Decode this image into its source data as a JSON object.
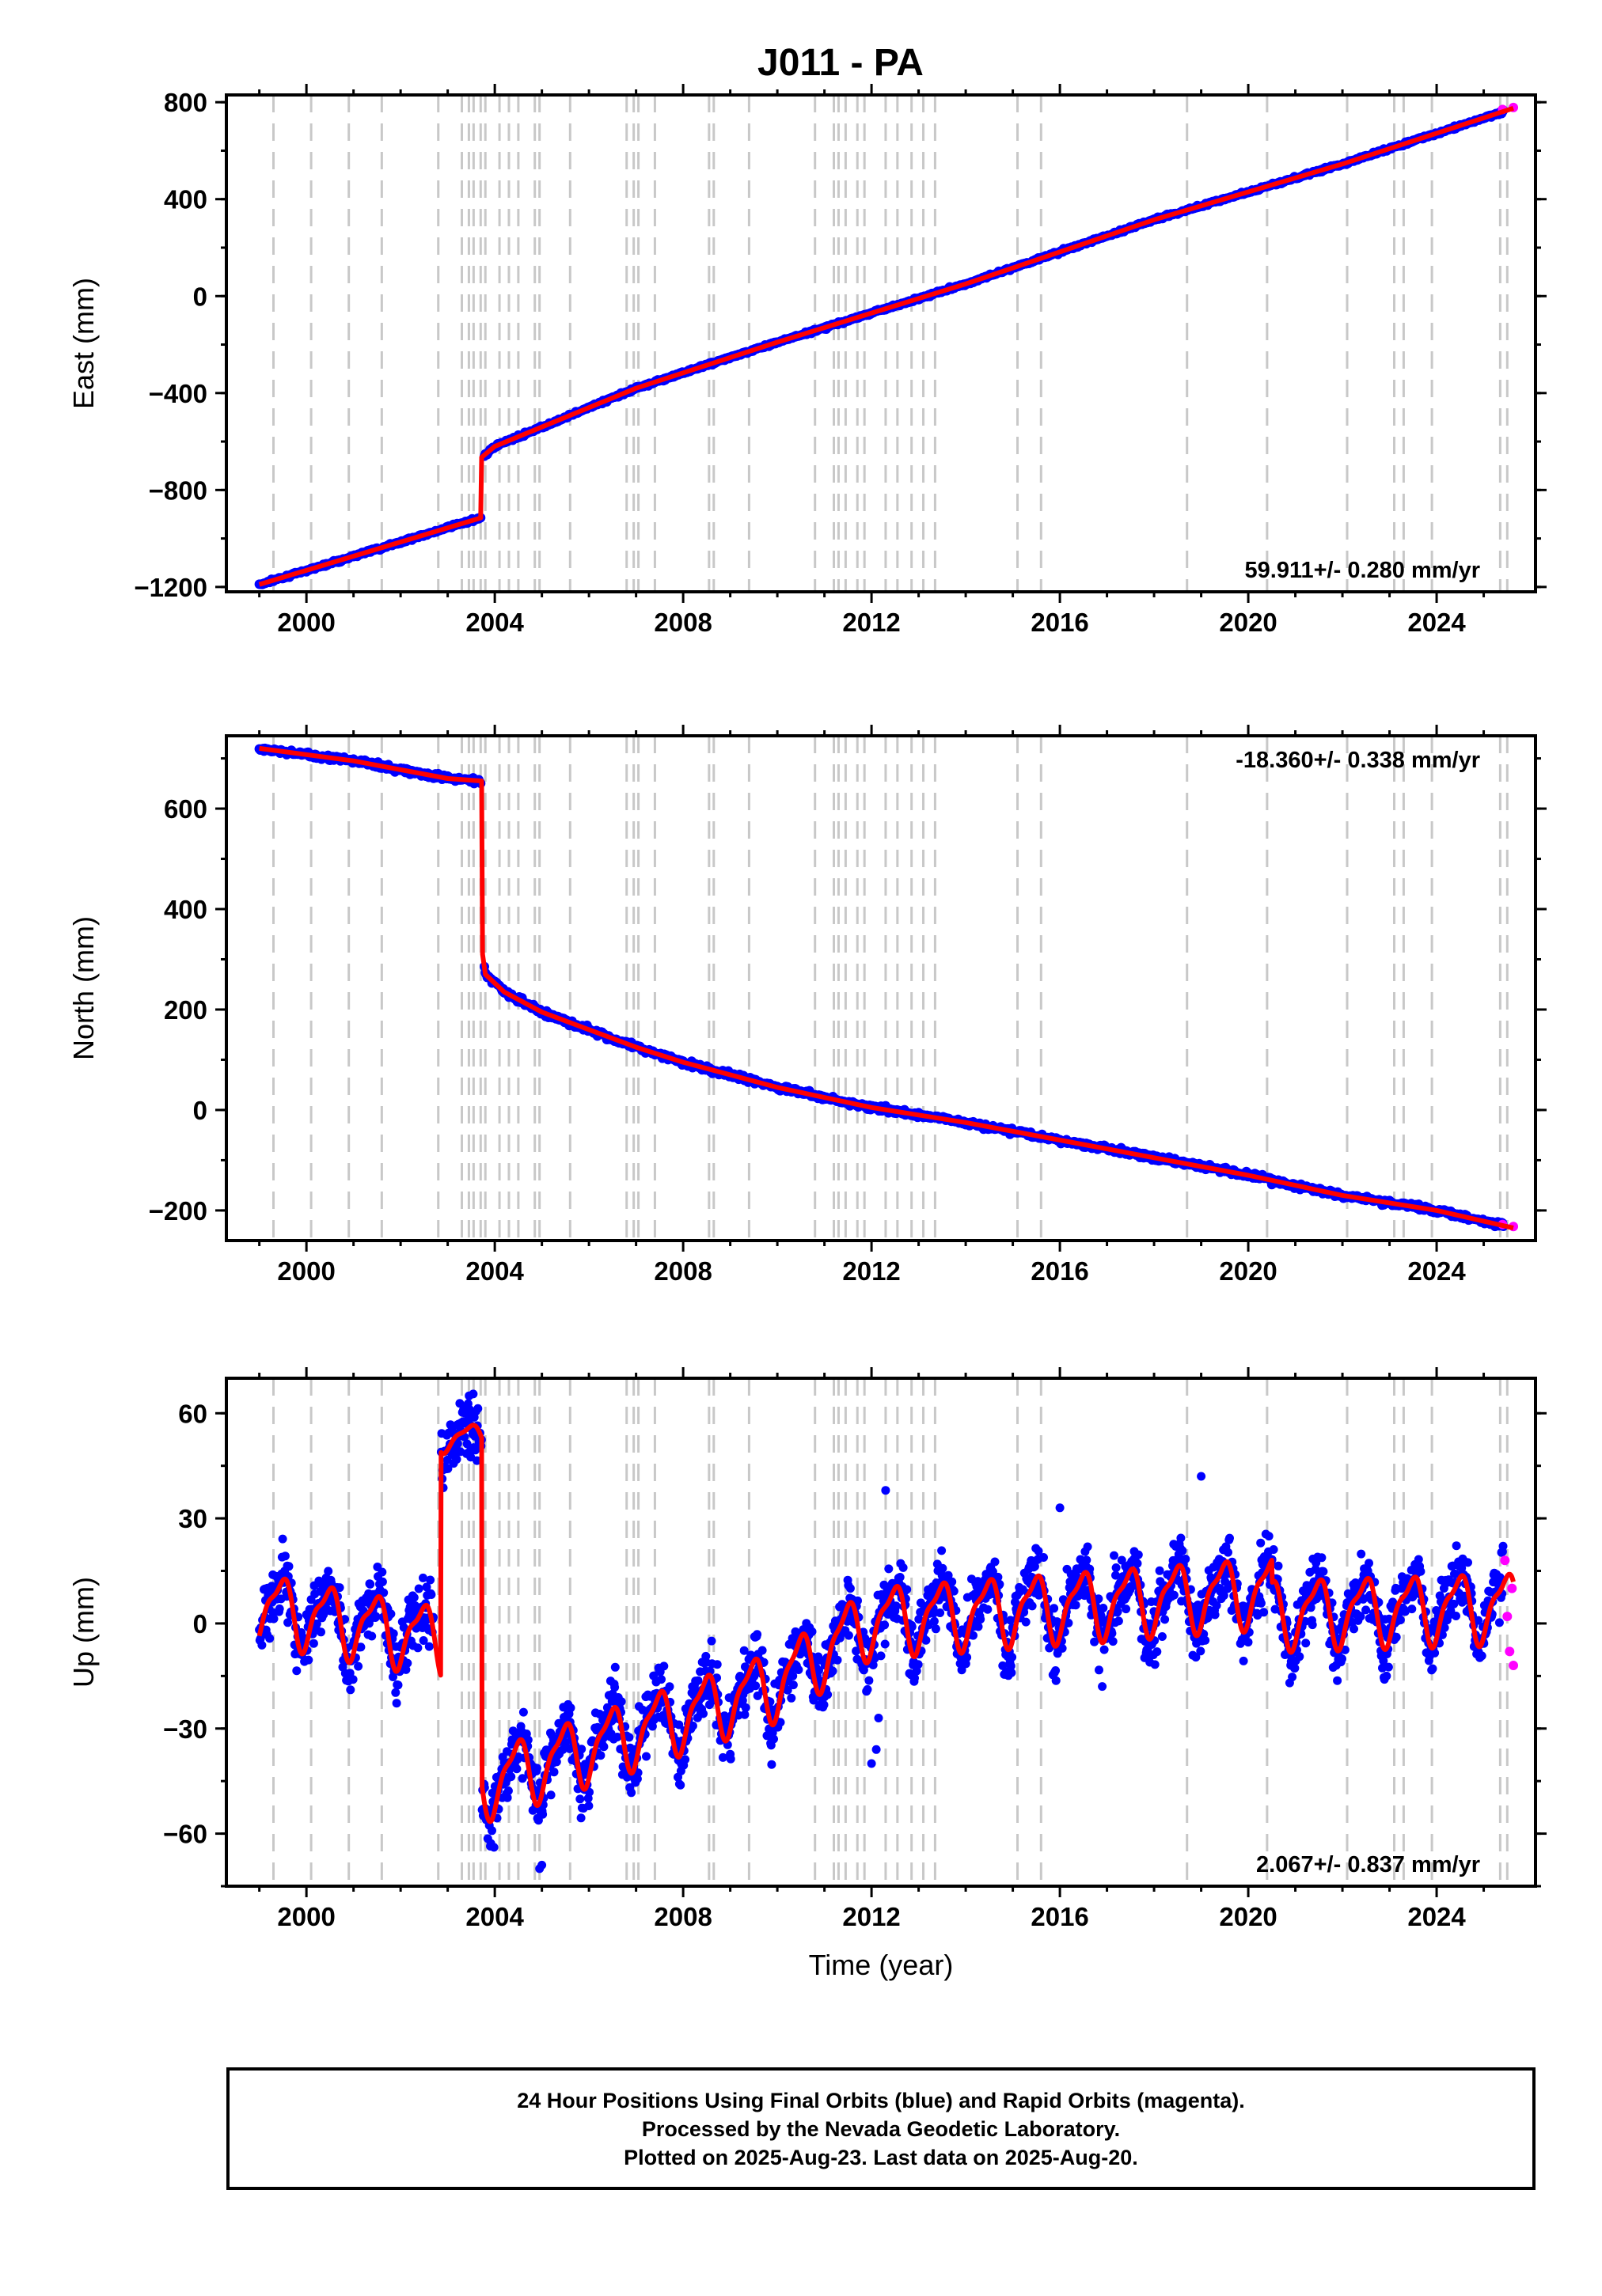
{
  "title": "J011 - PA",
  "colors": {
    "final_orbits": "#0000ff",
    "rapid_orbits": "#ff00ff",
    "model_fit": "#ff0000",
    "event_lines": "#c8c8c8"
  },
  "chart_data": [
    {
      "type": "scatter",
      "name": "east",
      "ylabel": "East (mm)",
      "xlabel": "",
      "xlim": [
        1998.3,
        2026.1
      ],
      "ylim": [
        -1220,
        830
      ],
      "x_ticks": [
        2000,
        2004,
        2008,
        2012,
        2016,
        2020,
        2024
      ],
      "y_ticks": [
        -1200,
        -800,
        -400,
        0,
        400,
        800
      ],
      "x_tick_labels": [
        "2000",
        "2004",
        "2008",
        "2012",
        "2016",
        "2020",
        "2024"
      ],
      "y_tick_labels": [
        "−1200",
        "−800",
        "−400",
        "0",
        "400",
        "800"
      ],
      "rate_label": "59.911+/- 0.280 mm/yr",
      "rate_position": "bottom-right",
      "series": [
        {
          "name": "final",
          "x": [
            1999.0,
            2001.0,
            2003.0,
            2003.7
          ],
          "y": [
            -1190,
            -1075,
            -960,
            -915
          ]
        },
        {
          "name": "rapid",
          "x": [
            2025.4,
            2025.63
          ],
          "y": [
            770,
            778
          ]
        }
      ],
      "fit": {
        "x": [
          1999.0,
          2003.7,
          2003.72,
          2004.0,
          2005.0,
          2007.0,
          2010.0,
          2014.0,
          2018.0,
          2022.0,
          2025.63
        ],
        "y": [
          -1190,
          -915,
          -665,
          -620,
          -540,
          -380,
          -190,
          50,
          315,
          545,
          775
        ]
      }
    },
    {
      "type": "scatter",
      "name": "north",
      "ylabel": "North (mm)",
      "xlabel": "",
      "xlim": [
        1998.3,
        2026.1
      ],
      "ylim": [
        -260,
        745
      ],
      "x_ticks": [
        2000,
        2004,
        2008,
        2012,
        2016,
        2020,
        2024
      ],
      "y_ticks": [
        -200,
        0,
        200,
        400,
        600
      ],
      "x_tick_labels": [
        "2000",
        "2004",
        "2008",
        "2012",
        "2016",
        "2020",
        "2024"
      ],
      "y_tick_labels": [
        "−200",
        "0",
        "200",
        "400",
        "600"
      ],
      "rate_label": "-18.360+/- 0.338 mm/yr",
      "rate_position": "top-right",
      "series": [
        {
          "name": "rapid",
          "x": [
            2025.4,
            2025.63
          ],
          "y": [
            -228,
            -232
          ]
        }
      ],
      "fit": {
        "x": [
          1999.0,
          2001.0,
          2003.0,
          2003.72,
          2003.74,
          2003.8,
          2004.2,
          2005.0,
          2006.0,
          2007.0,
          2008.0,
          2010.0,
          2012.0,
          2014.0,
          2016.0,
          2018.0,
          2020.0,
          2022.0,
          2024.0,
          2025.63
        ],
        "y": [
          720,
          695,
          660,
          655,
          310,
          270,
          235,
          195,
          160,
          125,
          95,
          45,
          5,
          -25,
          -60,
          -95,
          -130,
          -170,
          -200,
          -235
        ]
      }
    },
    {
      "type": "scatter",
      "name": "up",
      "ylabel": "Up (mm)",
      "xlabel": "Time (year)",
      "xlim": [
        1998.3,
        2026.1
      ],
      "ylim": [
        -75,
        70
      ],
      "x_ticks": [
        2000,
        2004,
        2008,
        2012,
        2016,
        2020,
        2024
      ],
      "y_ticks": [
        -60,
        -30,
        0,
        30,
        60
      ],
      "x_tick_labels": [
        "2000",
        "2004",
        "2008",
        "2012",
        "2016",
        "2020",
        "2024"
      ],
      "y_tick_labels": [
        "−60",
        "−30",
        "0",
        "30",
        "60"
      ],
      "rate_label": "2.067+/- 0.837 mm/yr",
      "rate_position": "bottom-right",
      "series": [
        {
          "name": "rapid",
          "x": [
            2025.45,
            2025.5,
            2025.55,
            2025.6,
            2025.63
          ],
          "y": [
            18,
            2,
            -8,
            10,
            -12
          ]
        }
      ],
      "fit": {
        "x": [],
        "y": []
      }
    }
  ],
  "event_lines_x": [
    1999.3,
    2000.1,
    2000.9,
    2001.6,
    2002.8,
    2003.3,
    2003.45,
    2003.55,
    2003.7,
    2003.8,
    2004.1,
    2004.3,
    2004.5,
    2004.85,
    2004.95,
    2005.6,
    2006.8,
    2006.95,
    2007.05,
    2007.4,
    2008.55,
    2008.65,
    2009.4,
    2010.8,
    2011.2,
    2011.3,
    2011.45,
    2011.7,
    2011.85,
    2012.3,
    2012.55,
    2012.85,
    2013.1,
    2013.35,
    2015.1,
    2015.6,
    2018.7,
    2020.4,
    2022.1,
    2023.1,
    2023.3,
    2023.9,
    2025.35,
    2025.5
  ],
  "footer": {
    "line1": "24 Hour Positions Using Final Orbits (blue) and Rapid Orbits (magenta).",
    "line2": "Processed by the Nevada Geodetic Laboratory.",
    "line3": "Plotted on 2025-Aug-23. Last data on 2025-Aug-20."
  }
}
